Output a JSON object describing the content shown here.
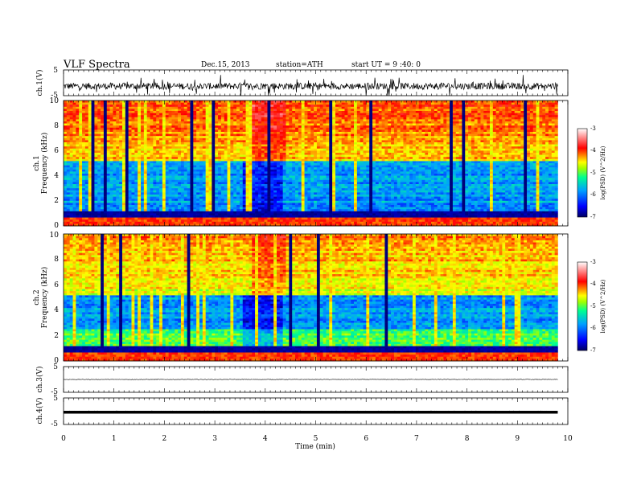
{
  "header": {
    "title": "VLF  Spectra",
    "date": "Dec.15, 2013",
    "station": "station=ATH",
    "start": "start  UT  =   9 :40: 0"
  },
  "chart_data": [
    {
      "type": "line",
      "name": "ch1-waveform",
      "ylabel": "ch.1(V)",
      "ylim": [
        -5,
        5
      ],
      "yticks": [
        "5",
        "-5"
      ],
      "xlim": [
        0,
        10
      ],
      "x_extent_min": 9.8,
      "baseline_V": -1.3,
      "noise_amplitude_V": 1.3
    },
    {
      "type": "heatmap",
      "name": "ch1-spectrogram",
      "ylabel_channel": "ch.1",
      "ylabel": "Frequency  (kHz)",
      "ylim": [
        0,
        10
      ],
      "yticks": [
        "0",
        "2",
        "4",
        "6",
        "8",
        "10"
      ],
      "xlim": [
        0,
        10
      ],
      "x_extent_min": 9.8,
      "colorbar": {
        "label": "log(PSD) (V^2/Hz)",
        "range": [
          -7,
          -3
        ],
        "ticks": [
          "-3",
          "-4",
          "-5",
          "-6",
          "-7"
        ]
      }
    },
    {
      "type": "heatmap",
      "name": "ch2-spectrogram",
      "ylabel_channel": "ch.2",
      "ylabel": "Frequency  (kHz)",
      "ylim": [
        0,
        10
      ],
      "yticks": [
        "0",
        "2",
        "4",
        "6",
        "8",
        "10"
      ],
      "xlim": [
        0,
        10
      ],
      "x_extent_min": 9.8,
      "colorbar": {
        "label": "log(PSD) (V^2/Hz)",
        "range": [
          -7,
          -3
        ],
        "ticks": [
          "-3",
          "-4",
          "-5",
          "-6",
          "-7"
        ]
      }
    },
    {
      "type": "line",
      "name": "ch3-waveform",
      "ylabel": "ch.3(V)",
      "ylim": [
        -5,
        5
      ],
      "yticks": [
        "5",
        "-5"
      ],
      "xlim": [
        0,
        10
      ],
      "x_extent_min": 9.8,
      "baseline_V": 0,
      "noise_amplitude_V": 0.1
    },
    {
      "type": "line",
      "name": "ch4-waveform",
      "ylabel": "ch.4(V)",
      "ylim": [
        -5,
        5
      ],
      "yticks": [
        "5",
        "-5"
      ],
      "xlim": [
        0,
        10
      ],
      "x_extent_min": 9.8,
      "baseline_V": -0.2,
      "noise_amplitude_V": 0.3
    }
  ],
  "xaxis": {
    "label": "Time  (min)",
    "ticks": [
      "0",
      "1",
      "2",
      "3",
      "4",
      "5",
      "6",
      "7",
      "8",
      "9",
      "10"
    ]
  },
  "colors": {
    "colormap": [
      "#000060",
      "#0000ff",
      "#00a0ff",
      "#00ff90",
      "#a0ff00",
      "#ffff00",
      "#ff0000",
      "#ffffff"
    ]
  }
}
